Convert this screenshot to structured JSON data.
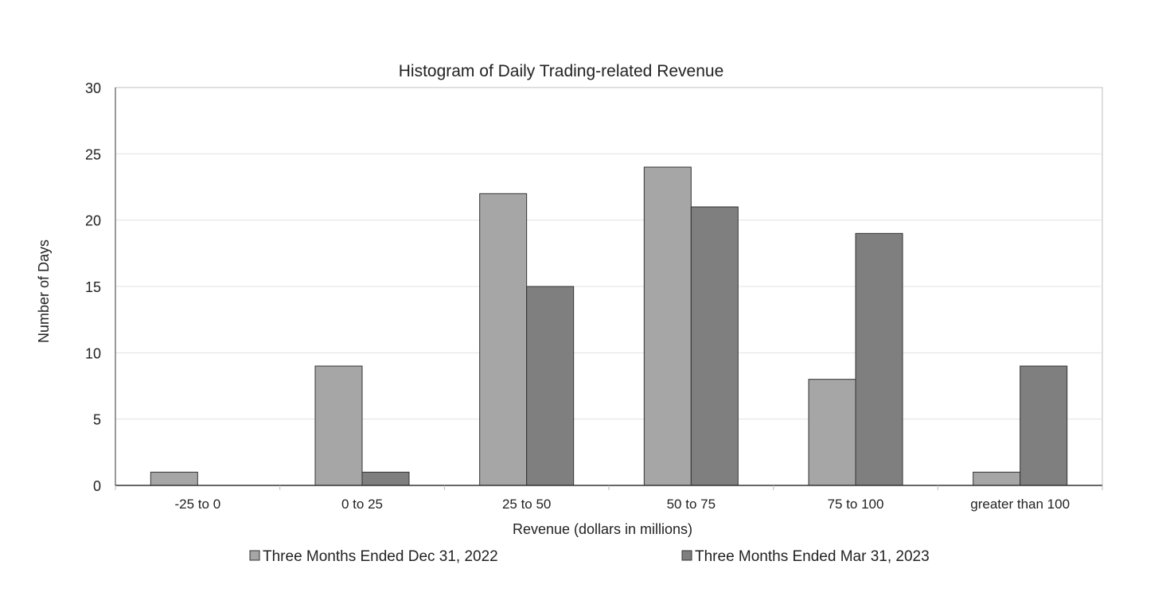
{
  "chart_data": {
    "type": "bar",
    "title": "Histogram of Daily Trading-related Revenue",
    "xlabel": "Revenue (dollars in millions)",
    "ylabel": "Number of Days",
    "ylim": [
      0,
      30
    ],
    "yticks": [
      0,
      5,
      10,
      15,
      20,
      25,
      30
    ],
    "grid": true,
    "legend_placement": "bottom",
    "categories": [
      "-25 to 0",
      "0 to 25",
      "25 to 50",
      "50 to 75",
      "75 to 100",
      "greater than 100"
    ],
    "series": [
      {
        "name": "Three Months Ended Dec 31, 2022",
        "values": [
          1,
          9,
          22,
          24,
          8,
          1
        ],
        "color": "#a6a6a6"
      },
      {
        "name": "Three Months Ended Mar 31, 2023",
        "values": [
          0,
          1,
          15,
          21,
          19,
          9
        ],
        "color": "#7f7f7f"
      }
    ]
  }
}
